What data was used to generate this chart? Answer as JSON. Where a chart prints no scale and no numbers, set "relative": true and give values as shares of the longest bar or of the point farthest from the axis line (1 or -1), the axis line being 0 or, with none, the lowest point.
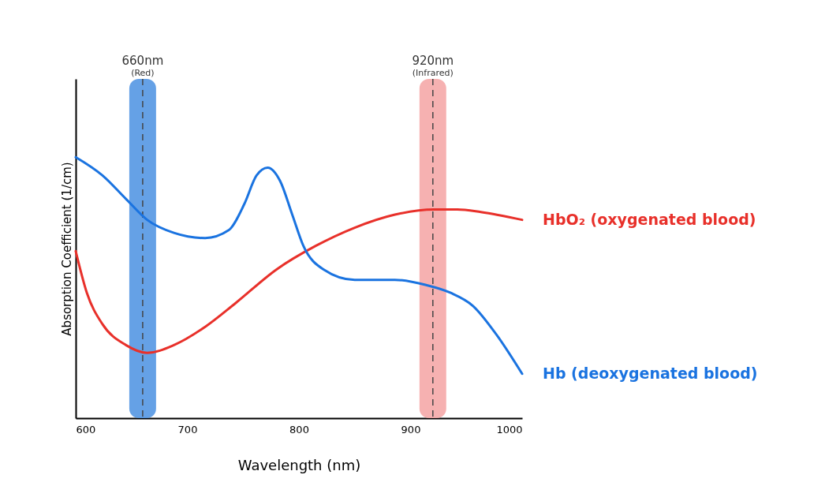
{
  "chart_data": {
    "type": "line",
    "xlabel": "Wavelength (nm)",
    "ylabel": "Absorption Coefficient (1/cm)",
    "relative": true,
    "xlim": [
      600,
      1000
    ],
    "xticks": [
      600,
      700,
      800,
      900,
      1000
    ],
    "grid": false,
    "marker": "none",
    "line_style": "solid",
    "series": [
      {
        "name": "HbO₂ (oxygenated blood)",
        "color": "#e8302a",
        "x": [
          600,
          610,
          624,
          645,
          664,
          688,
          716,
          743,
          780,
          815,
          850,
          886,
          921,
          942,
          963,
          1000
        ],
        "values": [
          0.64,
          0.48,
          0.36,
          0.28,
          0.25,
          0.28,
          0.35,
          0.44,
          0.57,
          0.66,
          0.73,
          0.78,
          0.8,
          0.8,
          0.79,
          0.76
        ]
      },
      {
        "name": "Hb (deoxygenated blood)",
        "color": "#1a73e0",
        "x": [
          600,
          624,
          645,
          664,
          688,
          716,
          737,
          751,
          762,
          772,
          783,
          794,
          804,
          822,
          850,
          886,
          914,
          936,
          956,
          977,
          1000
        ],
        "values": [
          1.0,
          0.93,
          0.84,
          0.76,
          0.71,
          0.69,
          0.72,
          0.82,
          0.93,
          0.96,
          0.91,
          0.78,
          0.66,
          0.57,
          0.53,
          0.53,
          0.51,
          0.48,
          0.43,
          0.32,
          0.17
        ]
      }
    ],
    "bands": [
      {
        "axis": "x",
        "from": 648,
        "to": 672,
        "label": "(Red)",
        "color": "#4a90e2"
      },
      {
        "axis": "x",
        "from": 908,
        "to": 932,
        "label": "(Infrared)",
        "color": "#f4a3a3"
      }
    ],
    "ref_lines": [
      {
        "axis": "x",
        "value": 660,
        "label": "660nm",
        "line_style": "dashed",
        "color": "#444444"
      },
      {
        "axis": "x",
        "value": 920,
        "label": "920nm",
        "line_style": "dashed",
        "color": "#444444"
      }
    ]
  }
}
